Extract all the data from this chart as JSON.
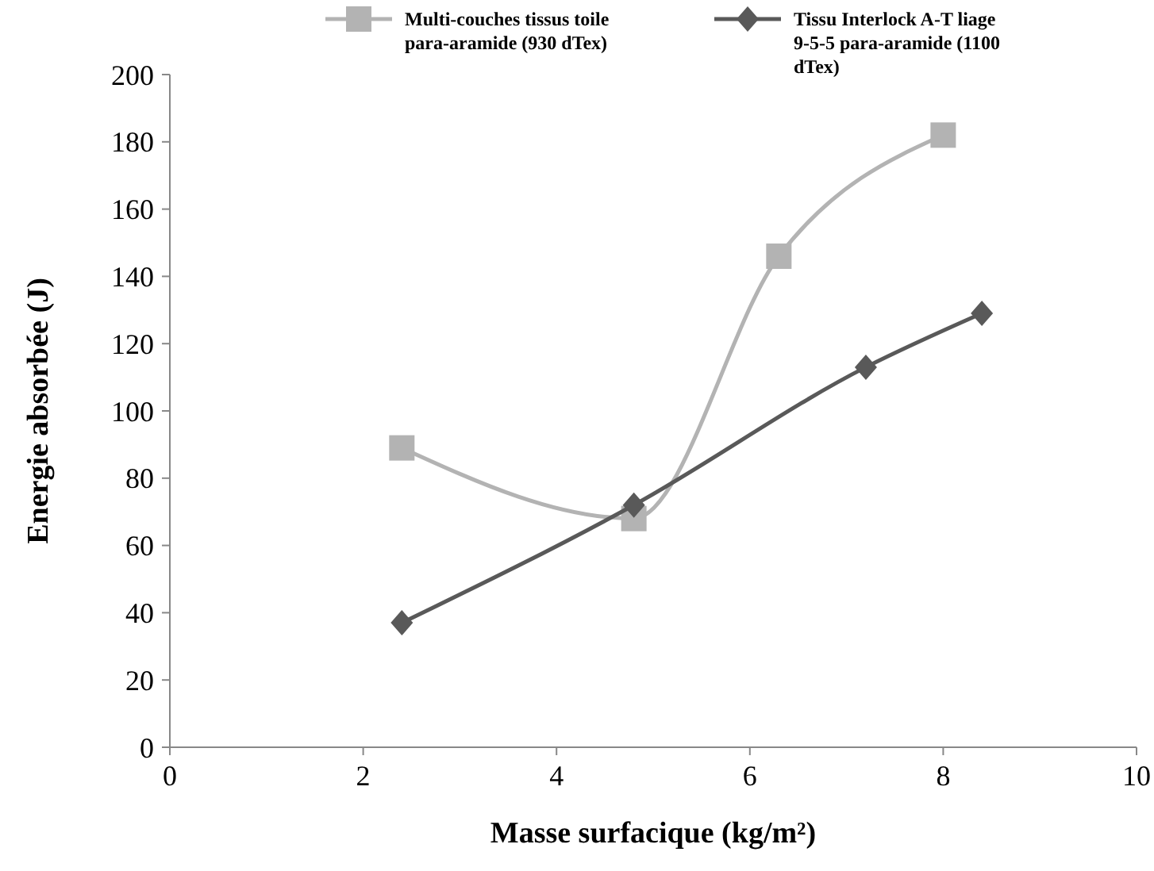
{
  "chart_data": {
    "type": "line",
    "xlabel": "Masse surfacique (kg/m²)",
    "ylabel": "Energie absorbée (J)",
    "xlim": [
      0,
      10
    ],
    "xticks": [
      0,
      2,
      4,
      6,
      8,
      10
    ],
    "ylim": [
      0,
      200
    ],
    "yticks": [
      0,
      20,
      40,
      60,
      80,
      100,
      120,
      140,
      160,
      180,
      200
    ],
    "legend": "top",
    "grid": false,
    "series": [
      {
        "name": "Multi-couches tissus toile para-aramide (930 dTex)",
        "color": "#b3b3b3",
        "marker": "square",
        "x": [
          2.4,
          4.8,
          6.3,
          8.0
        ],
        "values": [
          89,
          68,
          146,
          182
        ]
      },
      {
        "name": "Tissu Interlock A-T liage 9-5-5 para-aramide (1100 dTex)",
        "color": "#595959",
        "marker": "diamond",
        "x": [
          2.4,
          4.8,
          7.2,
          8.4
        ],
        "values": [
          37,
          72,
          113,
          129
        ]
      }
    ]
  }
}
